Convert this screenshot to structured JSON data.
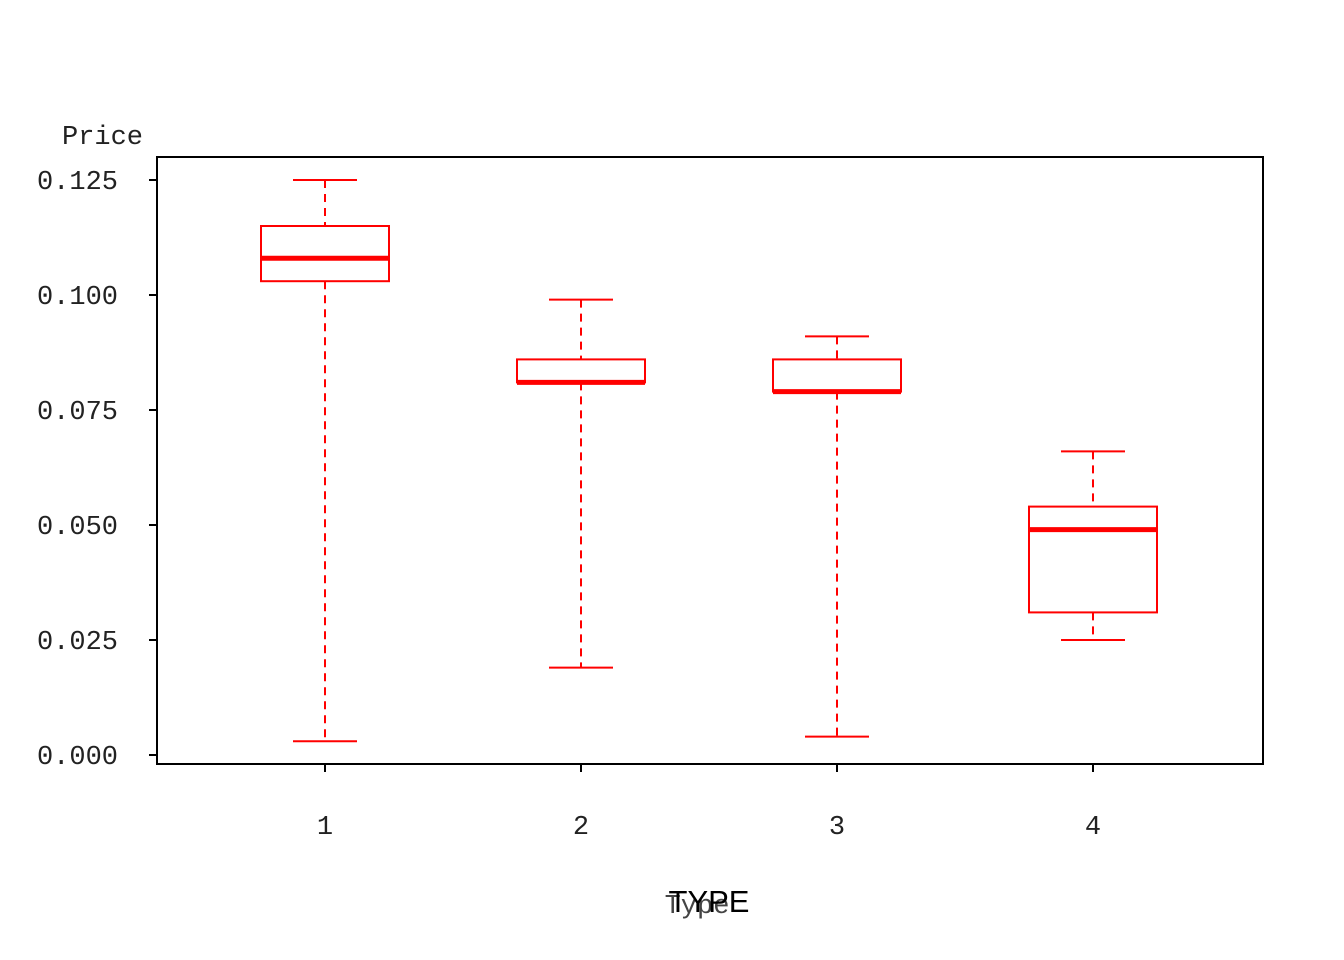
{
  "chart_data": {
    "type": "box",
    "ylabel": "Price",
    "xlabel_primary": "TYPE",
    "xlabel_secondary": "Type",
    "ylim": [
      0.0,
      0.125
    ],
    "yticks": [
      "0.000",
      "0.025",
      "0.050",
      "0.075",
      "0.100",
      "0.125"
    ],
    "categories": [
      "1",
      "2",
      "3",
      "4"
    ],
    "boxes": [
      {
        "category": "1",
        "min": 0.003,
        "q1": 0.103,
        "median": 0.108,
        "q3": 0.115,
        "max": 0.125
      },
      {
        "category": "2",
        "min": 0.019,
        "q1": 0.081,
        "median": 0.081,
        "q3": 0.086,
        "max": 0.099
      },
      {
        "category": "3",
        "min": 0.004,
        "q1": 0.079,
        "median": 0.079,
        "q3": 0.086,
        "max": 0.091
      },
      {
        "category": "4",
        "min": 0.025,
        "q1": 0.031,
        "median": 0.049,
        "q3": 0.054,
        "max": 0.066
      }
    ],
    "colors": {
      "box": "#ff0000",
      "axis": "#000000",
      "text": "#222222"
    },
    "grid": false,
    "legend": "none"
  }
}
